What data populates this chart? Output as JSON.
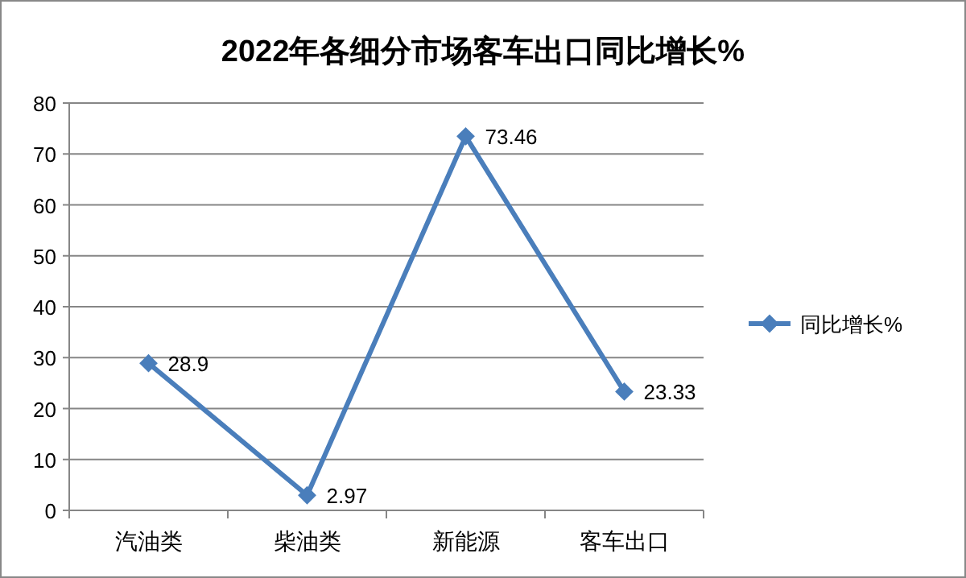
{
  "chart_data": {
    "type": "line",
    "title": "2022年各细分市场客车出口同比增长%",
    "categories": [
      "汽油类",
      "柴油类",
      "新能源",
      "客车出口"
    ],
    "series": [
      {
        "name": "同比增长%",
        "color": "#4a7ebb",
        "values": [
          28.9,
          2.97,
          73.46,
          23.33
        ]
      }
    ],
    "ylim": [
      0,
      80
    ],
    "yticks": [
      0,
      10,
      20,
      30,
      40,
      50,
      60,
      70,
      80
    ],
    "grid": "y",
    "legend": "right",
    "marker": "diamond",
    "data_labels": true
  }
}
